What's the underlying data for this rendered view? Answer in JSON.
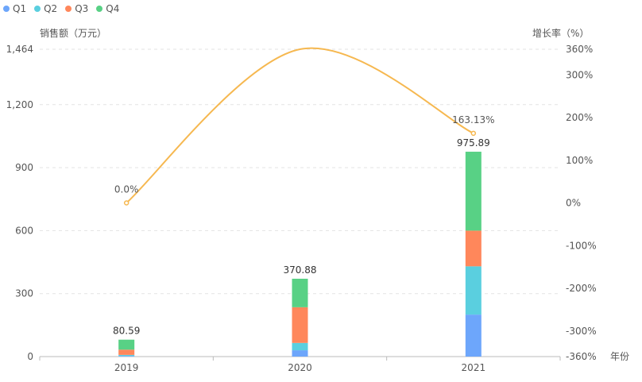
{
  "chart_data": {
    "type": "bar",
    "stacked": true,
    "categories": [
      "2019",
      "2020",
      "2021"
    ],
    "series": [
      {
        "name": "Q1",
        "color": "#6da6fb",
        "values": [
          3,
          30,
          200
        ]
      },
      {
        "name": "Q2",
        "color": "#5acfdf",
        "values": [
          5,
          35,
          230
        ]
      },
      {
        "name": "Q3",
        "color": "#ff875b",
        "values": [
          25,
          170,
          170
        ]
      },
      {
        "name": "Q4",
        "color": "#58d185",
        "values": [
          47.59,
          135.88,
          375.89
        ]
      }
    ],
    "totals": [
      "80.59",
      "370.88",
      "975.89"
    ],
    "line": {
      "name": "增长率",
      "color": "#f6b850",
      "values": [
        0,
        360,
        163.13
      ],
      "labels": [
        "0.0%",
        "",
        "163.13%"
      ]
    },
    "y_left": {
      "label": "销售额（万元）",
      "ticks": [
        "0",
        "300",
        "600",
        "900",
        "1,200",
        "1,464"
      ],
      "range": [
        0,
        1464
      ]
    },
    "y_right": {
      "label": "增长率（%）",
      "ticks": [
        "-360%",
        "-300%",
        "-200%",
        "-100%",
        "0%",
        "100%",
        "200%",
        "300%",
        "360%"
      ],
      "range": [
        -360,
        360
      ]
    },
    "x_label": "年份",
    "legend_position": "top-left",
    "grid": true
  }
}
